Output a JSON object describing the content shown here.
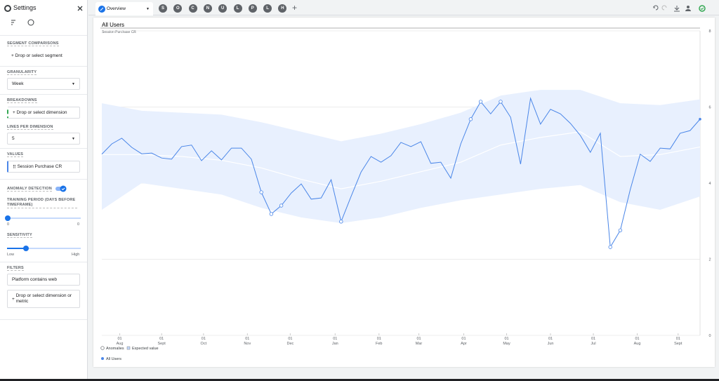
{
  "sidebar": {
    "title": "Settings",
    "segment_comparisons": {
      "label": "SEGMENT COMPARISONS",
      "placeholder": "Drop or select segment"
    },
    "granularity": {
      "label": "GRANULARITY",
      "value": "Week"
    },
    "breakdowns": {
      "label": "BREAKDOWNS",
      "placeholder": "Drop or select dimension"
    },
    "lines_per_dimension": {
      "label": "LINES PER DIMENSION",
      "value": "5"
    },
    "values": {
      "label": "VALUES",
      "value": "Session Purchase CR"
    },
    "anomaly_detection": {
      "label": "ANOMALY DETECTION"
    },
    "training_period": {
      "label": "TRAINING PERIOD (DAYS BEFORE TIMEFRAME)",
      "min": "0",
      "max": "0"
    },
    "sensitivity": {
      "label": "SENSITIVITY",
      "min": "Low",
      "max": "High"
    },
    "filters": {
      "label": "FILTERS",
      "items": [
        "Platform contains web"
      ],
      "placeholder": "Drop or select dimension or metric"
    }
  },
  "tabs": {
    "active": "Overview",
    "others": [
      "S",
      "O",
      "C",
      "N",
      "U",
      "L",
      "P",
      "L",
      "H"
    ]
  },
  "chart_data": {
    "type": "line",
    "title": "All Users",
    "y_label": "Session Purchase CR",
    "x": [
      0,
      1,
      2,
      3,
      4,
      5,
      6,
      7,
      8,
      9,
      10,
      11,
      12,
      13,
      14,
      15,
      16,
      17,
      18,
      19,
      20,
      21,
      22,
      23,
      24,
      25,
      26,
      27,
      28,
      29,
      30,
      31,
      32,
      33,
      34,
      35,
      36,
      37,
      38,
      39,
      40,
      41,
      42,
      43,
      44,
      45,
      46,
      47,
      48,
      49,
      50,
      51,
      52,
      53,
      54,
      55,
      56,
      57,
      58,
      59,
      60
    ],
    "series": [
      {
        "name": "All Users",
        "color": "#4a86e8",
        "values": [
          4.76,
          5.03,
          5.18,
          4.94,
          4.77,
          4.79,
          4.66,
          4.63,
          4.96,
          5.0,
          4.59,
          4.85,
          4.61,
          4.92,
          4.92,
          4.63,
          3.76,
          3.19,
          3.41,
          3.74,
          3.98,
          3.58,
          3.61,
          4.09,
          2.99,
          3.65,
          4.29,
          4.7,
          4.55,
          4.72,
          5.07,
          4.96,
          5.09,
          4.52,
          4.55,
          4.13,
          5.03,
          5.68,
          6.14,
          5.82,
          6.14,
          5.73,
          4.5,
          6.23,
          5.55,
          5.94,
          5.82,
          5.57,
          5.25,
          4.81,
          5.31,
          2.32,
          2.76,
          3.83,
          4.76,
          4.57,
          4.92,
          4.9,
          5.31,
          5.38,
          5.68
        ]
      },
      {
        "name": "Anomalies",
        "color": "#4a86e8",
        "values": [
          null,
          null,
          null,
          null,
          null,
          null,
          null,
          null,
          null,
          null,
          null,
          null,
          null,
          null,
          null,
          null,
          3.76,
          3.19,
          3.41,
          null,
          null,
          null,
          null,
          null,
          2.99,
          null,
          null,
          null,
          null,
          null,
          null,
          null,
          null,
          null,
          null,
          null,
          null,
          5.68,
          6.14,
          null,
          6.14,
          null,
          null,
          null,
          null,
          null,
          null,
          null,
          null,
          null,
          null,
          2.32,
          2.76,
          null,
          null,
          null,
          null,
          null,
          null,
          null,
          null
        ]
      }
    ],
    "expected": {
      "name": "Expected value",
      "color": "#ffffff",
      "band_color": "#e8f0fe",
      "x": [
        0,
        4,
        8,
        12,
        16,
        20,
        24,
        28,
        32,
        36,
        40,
        44,
        48,
        52,
        56,
        60
      ],
      "values": [
        4.75,
        4.75,
        4.7,
        4.6,
        4.4,
        4.1,
        3.85,
        4.05,
        4.3,
        4.55,
        5.0,
        5.2,
        5.35,
        4.7,
        4.75,
        4.95
      ],
      "upper": [
        6.1,
        5.9,
        5.85,
        5.8,
        5.6,
        5.35,
        5.1,
        5.3,
        5.55,
        5.85,
        6.3,
        6.45,
        6.45,
        6.1,
        6.05,
        6.2
      ],
      "lower": [
        3.3,
        4.0,
        3.85,
        3.7,
        3.35,
        3.1,
        2.95,
        3.1,
        3.35,
        3.55,
        3.7,
        3.85,
        3.95,
        3.5,
        3.3,
        3.65
      ]
    },
    "xlim": [
      0,
      60
    ],
    "xticks": [
      {
        "value": 1.8,
        "label": "01\nAug"
      },
      {
        "value": 6.0,
        "label": "01\nSept"
      },
      {
        "value": 10.2,
        "label": "01\nOct"
      },
      {
        "value": 14.6,
        "label": "01\nNov"
      },
      {
        "value": 18.9,
        "label": "01\nDec"
      },
      {
        "value": 23.4,
        "label": "01\nJan"
      },
      {
        "value": 27.8,
        "label": "01\nFeb"
      },
      {
        "value": 31.8,
        "label": "01\nMar"
      },
      {
        "value": 36.3,
        "label": "01\nApr"
      },
      {
        "value": 40.6,
        "label": "01\nMay"
      },
      {
        "value": 45.0,
        "label": "01\nJun"
      },
      {
        "value": 49.3,
        "label": "01\nJul"
      },
      {
        "value": 53.7,
        "label": "01\nAug"
      },
      {
        "value": 57.8,
        "label": "01\nSept"
      }
    ],
    "ylim": [
      0,
      8
    ],
    "yticks": [
      0,
      2,
      4,
      6,
      8
    ],
    "grid": true
  }
}
